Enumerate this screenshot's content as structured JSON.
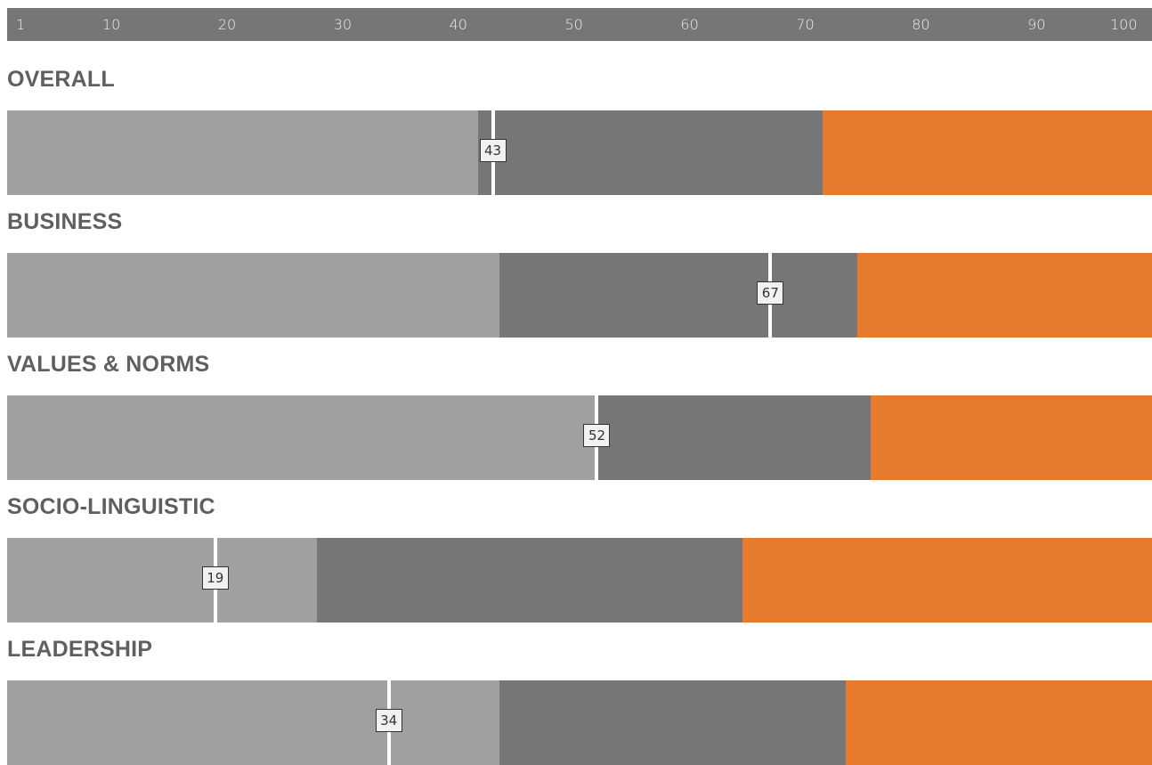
{
  "colors": {
    "scale_bg": "#767577",
    "tick_text": "#ececec",
    "title": "#5f5f60",
    "low": "#a0a0a0",
    "mid": "#767577",
    "high": "#e77b2d",
    "marker": "#ffffff",
    "label_bg": "#f1f1f1"
  },
  "chart_data": {
    "type": "bar",
    "orientation": "horizontal-stacked",
    "scale": {
      "min": 1,
      "max": 100,
      "ticks": [
        1,
        10,
        20,
        30,
        40,
        50,
        60,
        70,
        80,
        90,
        100
      ]
    },
    "rows": [
      {
        "title": "OVERALL",
        "low_end": 41.7,
        "mid_end": 71.5,
        "score": 43
      },
      {
        "title": "BUSINESS",
        "low_end": 43.6,
        "mid_end": 74.5,
        "score": 67
      },
      {
        "title": "VALUES & NORMS",
        "low_end": 51.8,
        "mid_end": 75.7,
        "score": 52
      },
      {
        "title": "SOCIO-LINGUISTIC",
        "low_end": 27.8,
        "mid_end": 64.6,
        "score": 19
      },
      {
        "title": "LEADERSHIP",
        "low_end": 43.6,
        "mid_end": 73.5,
        "score": 34
      }
    ]
  }
}
